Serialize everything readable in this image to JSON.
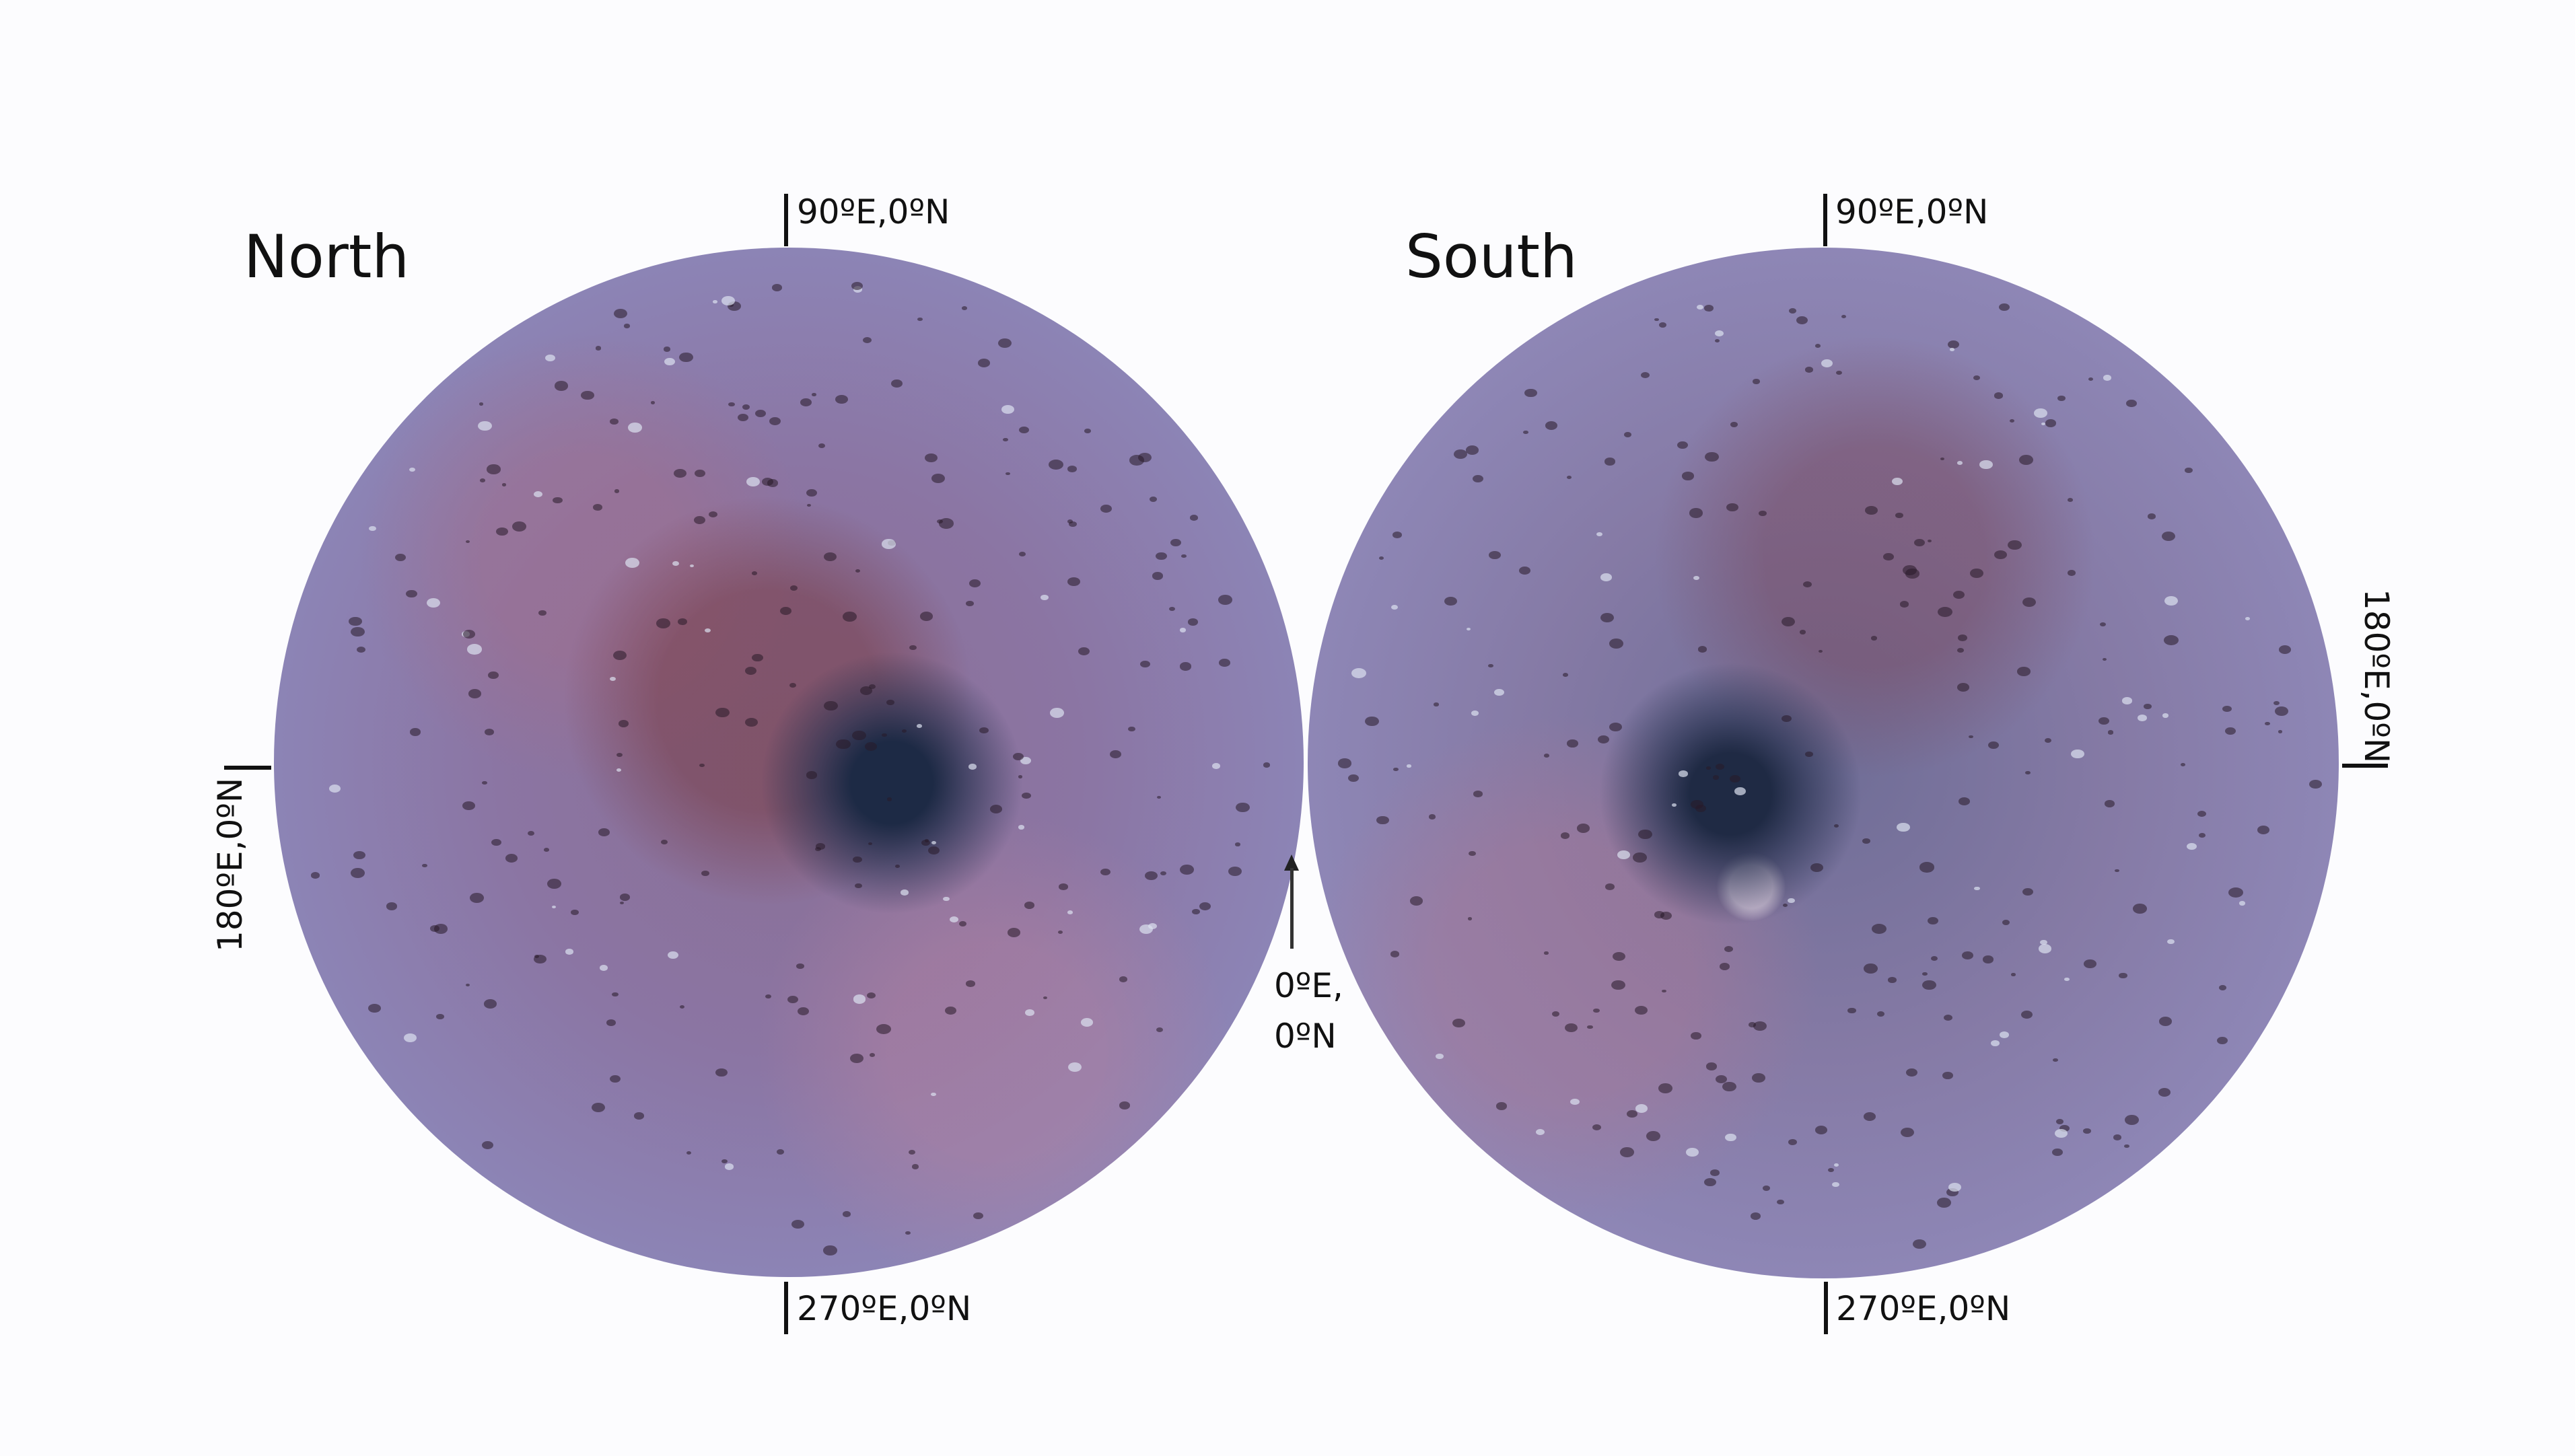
{
  "panels": [
    {
      "title": "North",
      "top_label": "90ºE,0ºN",
      "bottom_label": "270ºE,0ºN",
      "side_label": "180ºE,0ºN"
    },
    {
      "title": "South",
      "top_label": "90ºE,0ºN",
      "bottom_label": "270ºE,0ºN",
      "side_label": "180ºE,0ºN"
    }
  ],
  "center_marker": {
    "line1": "0ºE,",
    "line2": "0ºN",
    "icon": "arrow-up-icon"
  },
  "colors": {
    "surface_base": "#8b7aa6",
    "surface_rim": "#a9a9d6",
    "dark_terrain": "#1d2a45",
    "reddish_terrain": "#8a5a70"
  }
}
